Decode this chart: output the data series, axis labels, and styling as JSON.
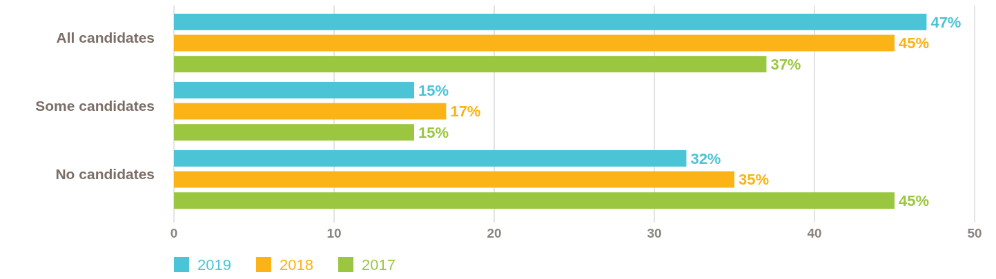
{
  "chart_data": {
    "type": "bar",
    "orientation": "horizontal",
    "categories": [
      "All candidates",
      "Some candidates",
      "No candidates"
    ],
    "series": [
      {
        "name": "2019",
        "color": "#4bc4d6",
        "values": [
          47,
          15,
          32
        ],
        "value_labels": [
          "47%",
          "15%",
          "32%"
        ]
      },
      {
        "name": "2018",
        "color": "#fbb317",
        "values": [
          45,
          17,
          35
        ],
        "value_labels": [
          "45%",
          "17%",
          "35%"
        ]
      },
      {
        "name": "2017",
        "color": "#9ac73f",
        "values": [
          37,
          15,
          45
        ],
        "value_labels": [
          "37%",
          "15%",
          "45%"
        ]
      }
    ],
    "xlim": [
      0,
      50
    ],
    "xticks": [
      0,
      10,
      20,
      30,
      40,
      50
    ],
    "grid": "x",
    "legend": "bottom"
  }
}
